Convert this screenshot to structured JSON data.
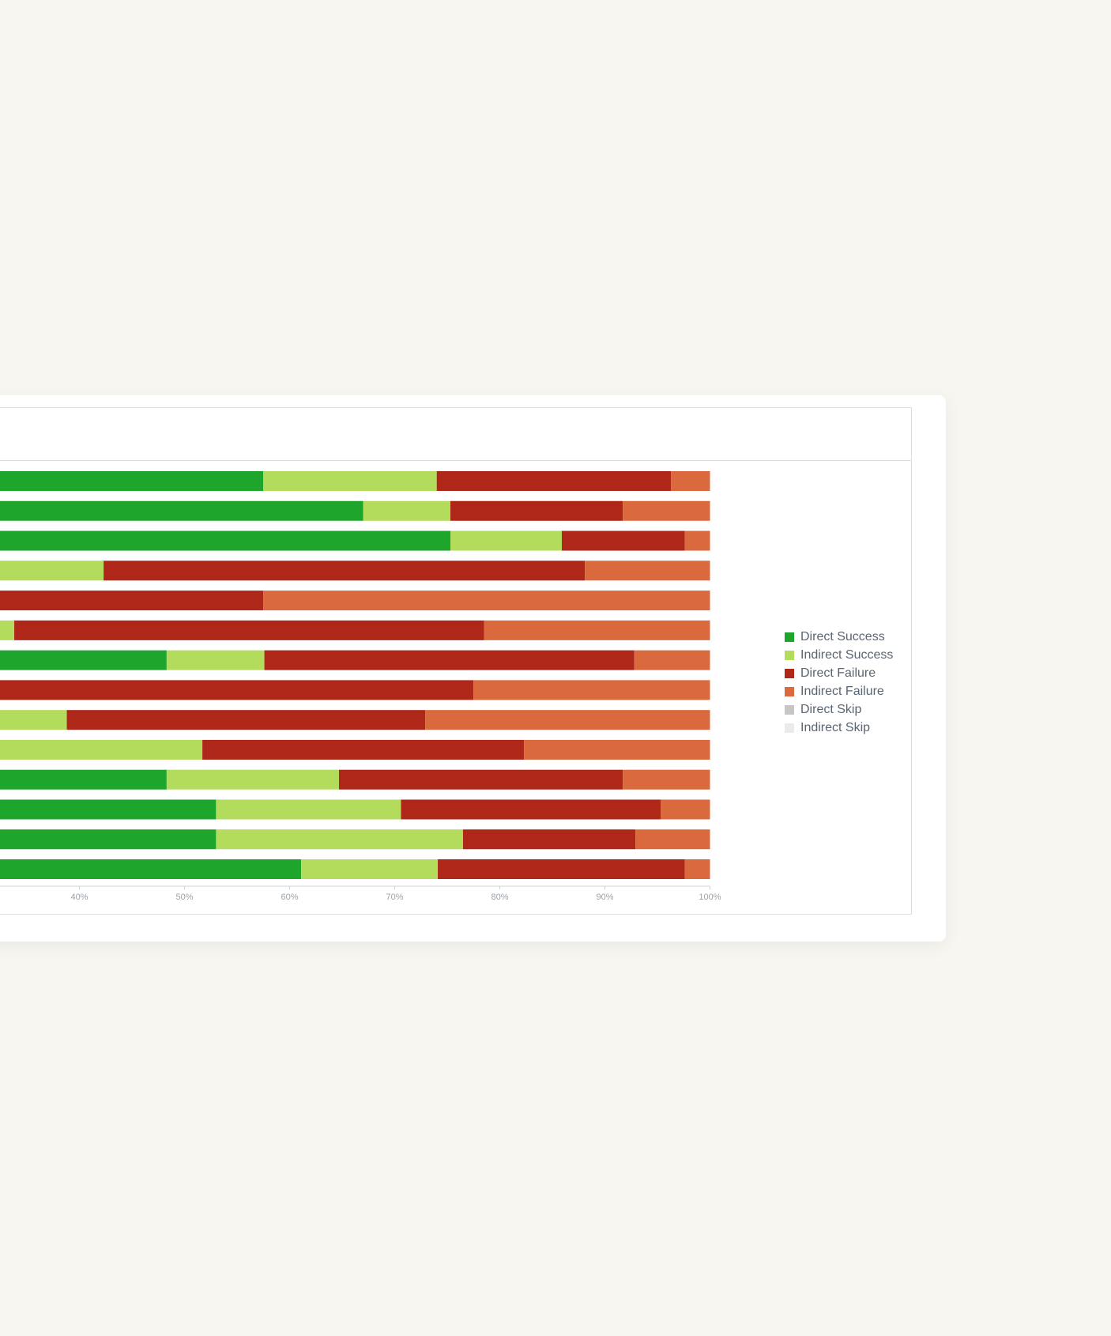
{
  "chart_data": {
    "type": "bar",
    "orientation": "horizontal",
    "stacked": "percent",
    "title": "",
    "xlabel": "",
    "ylabel": "",
    "xlim": [
      0,
      100
    ],
    "x_ticks": [
      "40%",
      "50%",
      "60%",
      "70%",
      "80%",
      "90%",
      "100%"
    ],
    "x_tick_values": [
      40,
      50,
      60,
      70,
      80,
      90,
      100
    ],
    "legend_position": "right",
    "grid": false,
    "series": [
      {
        "name": "Direct Success",
        "color": "#1ea52b",
        "values": [
          57.5,
          67,
          75.3,
          0,
          0,
          0,
          48.3,
          0,
          0,
          0,
          48.3,
          53,
          53,
          61.1
        ]
      },
      {
        "name": "Indirect Success",
        "color": "#b3dc5d",
        "values": [
          16.5,
          8.3,
          10.6,
          42.3,
          0,
          33.8,
          9.3,
          0,
          38.8,
          51.7,
          16.4,
          17.6,
          23.5,
          13
        ]
      },
      {
        "name": "Direct Failure",
        "color": "#ae2719",
        "values": [
          22.3,
          16.4,
          11.7,
          45.8,
          57.5,
          44.7,
          35.2,
          77.5,
          34.1,
          30.6,
          27,
          24.7,
          16.4,
          23.5
        ]
      },
      {
        "name": "Indirect Failure",
        "color": "#da6a3d",
        "values": [
          3.7,
          8.3,
          2.4,
          11.9,
          42.5,
          21.5,
          7.2,
          22.5,
          27.1,
          17.7,
          8.3,
          4.7,
          7.1,
          2.4
        ]
      },
      {
        "name": "Direct Skip",
        "color": "#c6c6c6",
        "values": [
          0,
          0,
          0,
          0,
          0,
          0,
          0,
          0,
          0,
          0,
          0,
          0,
          0,
          0
        ]
      },
      {
        "name": "Indirect Skip",
        "color": "#ebebeb",
        "values": [
          0,
          0,
          0,
          0,
          0,
          0,
          0,
          0,
          0,
          0,
          0,
          0,
          0,
          0
        ]
      }
    ]
  }
}
